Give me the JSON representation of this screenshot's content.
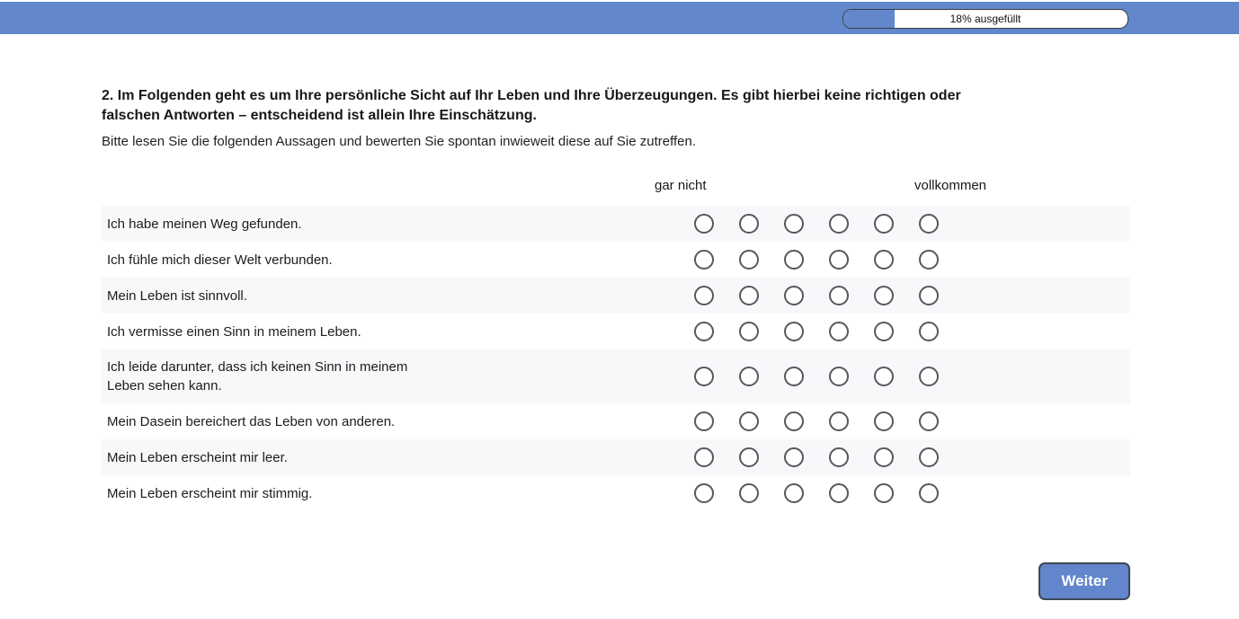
{
  "header": {
    "progress": {
      "percent": 18,
      "label": "18% ausgefüllt"
    }
  },
  "question": {
    "number": "2",
    "title": "2. Im Folgenden geht es um Ihre persönliche Sicht auf Ihr Leben und Ihre Überzeugungen. Es gibt hierbei keine richtigen oder\nfalschen Antworten – entscheidend ist allein Ihre Einschätzung.",
    "instruction": "Bitte lesen Sie die folgenden Aussagen und bewerten Sie spontan inwieweit diese auf Sie zutreffen."
  },
  "scale": {
    "min_label": "gar nicht",
    "max_label": "vollkommen",
    "option_count": 6
  },
  "statements": [
    "Ich habe meinen Weg gefunden.",
    "Ich fühle mich dieser Welt verbunden.",
    "Mein Leben ist sinnvoll.",
    "Ich vermisse einen Sinn in meinem Leben.",
    "Ich leide darunter, dass ich keinen Sinn in meinem\nLeben sehen kann.",
    "Mein Dasein bereichert das Leben von anderen.",
    "Mein Leben erscheint mir leer.",
    "Mein Leben erscheint mir stimmig."
  ],
  "footer": {
    "next_button_label": "Weiter"
  },
  "colors": {
    "accent_blue": "#6287cd",
    "row_alternate_gray": "#f7f8fa",
    "radio_border": "#56585e"
  }
}
